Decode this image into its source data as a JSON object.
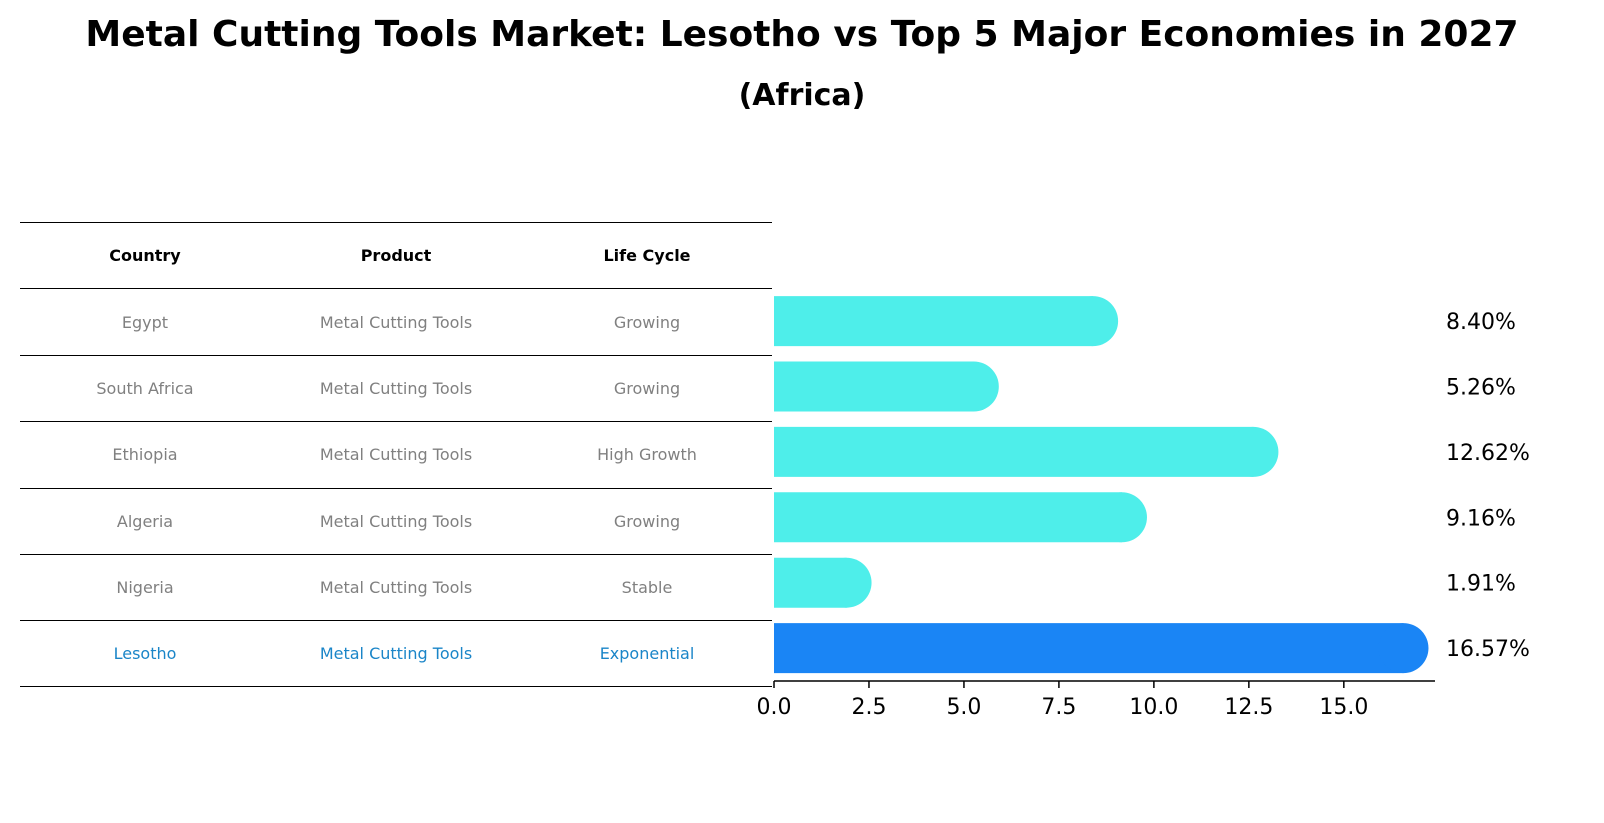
{
  "title": "Metal Cutting Tools Market: Lesotho vs Top 5 Major Economies in 2027",
  "subtitle": "(Africa)",
  "table": {
    "headers": [
      "Country",
      "Product",
      "Life Cycle"
    ],
    "rows": [
      {
        "country": "Egypt",
        "product": "Metal Cutting Tools",
        "life_cycle": "Growing"
      },
      {
        "country": "South Africa",
        "product": "Metal Cutting Tools",
        "life_cycle": "Growing"
      },
      {
        "country": "Ethiopia",
        "product": "Metal Cutting Tools",
        "life_cycle": "High Growth"
      },
      {
        "country": "Algeria",
        "product": "Metal Cutting Tools",
        "life_cycle": "Growing"
      },
      {
        "country": "Nigeria",
        "product": "Metal Cutting Tools",
        "life_cycle": "Stable"
      },
      {
        "country": "Lesotho",
        "product": "Metal Cutting Tools",
        "life_cycle": "Exponential"
      }
    ]
  },
  "chart_data": {
    "type": "bar",
    "orientation": "horizontal",
    "categories": [
      "Egypt",
      "South Africa",
      "Ethiopia",
      "Algeria",
      "Nigeria",
      "Lesotho"
    ],
    "values": [
      8.4,
      5.26,
      12.62,
      9.16,
      1.91,
      16.57
    ],
    "value_labels": [
      "8.40%",
      "5.26%",
      "12.62%",
      "9.16%",
      "1.91%",
      "16.57%"
    ],
    "highlight": "Lesotho",
    "xlim": [
      0,
      17.4
    ],
    "xticks": [
      0.0,
      2.5,
      5.0,
      7.5,
      10.0,
      12.5,
      15.0
    ],
    "xtick_labels": [
      "0.0",
      "2.5",
      "5.0",
      "7.5",
      "10.0",
      "12.5",
      "15.0"
    ],
    "colors": {
      "default": "#4eeeea",
      "highlight": "#1a85f5"
    }
  }
}
